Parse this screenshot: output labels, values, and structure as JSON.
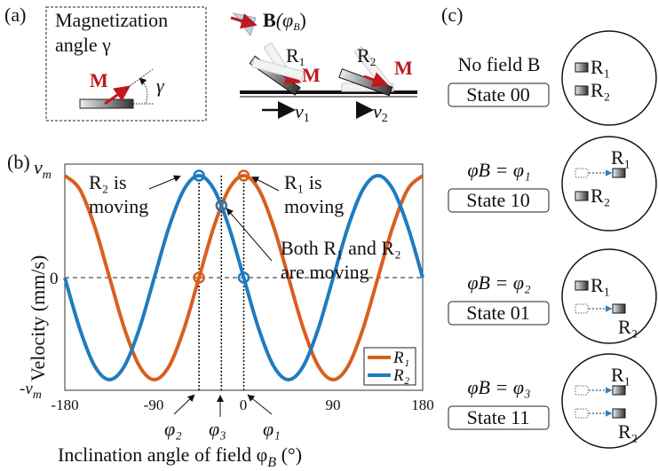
{
  "panel_a": {
    "label": "(a)",
    "title_line1": "Magnetization",
    "title_line2": "angle γ",
    "m_label": "M",
    "gamma_label": "γ",
    "field_label": "B",
    "field_arg_open": "(φ",
    "field_arg_sub": "B",
    "field_arg_close": ")",
    "r1_label": "R",
    "r1_sub": "1",
    "r2_label": "R",
    "r2_sub": "2",
    "m_label_2": "M",
    "m_label_3": "M",
    "v1_label": "v",
    "v1_sub": "1",
    "v2_label": "v",
    "v2_sub": "2"
  },
  "panel_b": {
    "label": "(b)",
    "annotations": {
      "r2_moving_1": "R₂ is",
      "r2_moving_2": "moving",
      "r1_moving_1": "R₁ is",
      "r1_moving_2": "moving",
      "both_1": "Both R₁ and R₂",
      "both_2": "are moving",
      "phi1": "φ₁",
      "phi2": "φ₂",
      "phi3": "φ₃"
    }
  },
  "chart_data": {
    "type": "line",
    "xlabel": "Inclination angle of field φ",
    "xlabel_sub": "B",
    "xlabel_unit": " (°)",
    "ylabel": "Velocity  (mm/s)",
    "xlim": [
      -180,
      180
    ],
    "ylim": [
      -1,
      1
    ],
    "x_ticks": [
      "-180",
      "-90",
      "0",
      "90",
      "180"
    ],
    "y_ticks": {
      "top": "v",
      "top_sub": "m",
      "zero": "0",
      "bottom": "-v",
      "bottom_sub": "m"
    },
    "grid": false,
    "zero_line": "dashed",
    "legend_position": "bottom-right",
    "x": [
      -180,
      -165,
      -150,
      -135,
      -120,
      -105,
      -90,
      -75,
      -60,
      -45,
      -30,
      -15,
      0,
      15,
      30,
      45,
      60,
      75,
      90,
      105,
      120,
      135,
      150,
      165,
      180
    ],
    "series": [
      {
        "name": "R₁",
        "color": "#d95f1f",
        "values": [
          1,
          0.866,
          0.5,
          0,
          -0.5,
          -0.866,
          -1,
          -0.866,
          -0.5,
          0,
          0.5,
          0.866,
          1,
          0.866,
          0.5,
          0,
          -0.5,
          -0.866,
          -1,
          -0.866,
          -0.5,
          0,
          0.5,
          0.866,
          1
        ]
      },
      {
        "name": "R₂",
        "color": "#1f7bbf",
        "values": [
          0,
          -0.5,
          -0.866,
          -1,
          -0.866,
          -0.5,
          0,
          0.5,
          0.866,
          1,
          0.866,
          0.5,
          0,
          -0.5,
          -0.866,
          -1,
          -0.866,
          -0.5,
          0,
          0.5,
          0.866,
          1,
          0.866,
          0.5,
          0
        ]
      }
    ],
    "markers": [
      {
        "x": -45,
        "y": 1,
        "color": "#1f7bbf"
      },
      {
        "x": 0,
        "y": 1,
        "color": "#d95f1f"
      },
      {
        "x": -45,
        "y": 0,
        "color": "#d95f1f"
      },
      {
        "x": 0,
        "y": 0,
        "color": "#1f7bbf"
      },
      {
        "x": -22.5,
        "y": 0.707,
        "color": "#3a6f9a"
      }
    ],
    "vlines": [
      -45,
      -22.5,
      0
    ]
  },
  "panel_c": {
    "label": "(c)",
    "states": [
      {
        "condition": "No field B",
        "state": "State 00"
      },
      {
        "condition": "φB = φ₁",
        "cond_main": "φ",
        "cond_sub": "B",
        "cond_rest": " = φ₁",
        "state": "State 10"
      },
      {
        "condition": "φB = φ₂",
        "cond_main": "φ",
        "cond_sub": "B",
        "cond_rest": " = φ₂",
        "state": "State 01"
      },
      {
        "condition": "φB = φ₃",
        "cond_main": "φ",
        "cond_sub": "B",
        "cond_rest": " = φ₃",
        "state": "State 11"
      }
    ],
    "r1": "R₁",
    "r2": "R₂"
  },
  "colors": {
    "magnet_red": "#c0181e",
    "arrow_blue": "#3a7fb5"
  }
}
